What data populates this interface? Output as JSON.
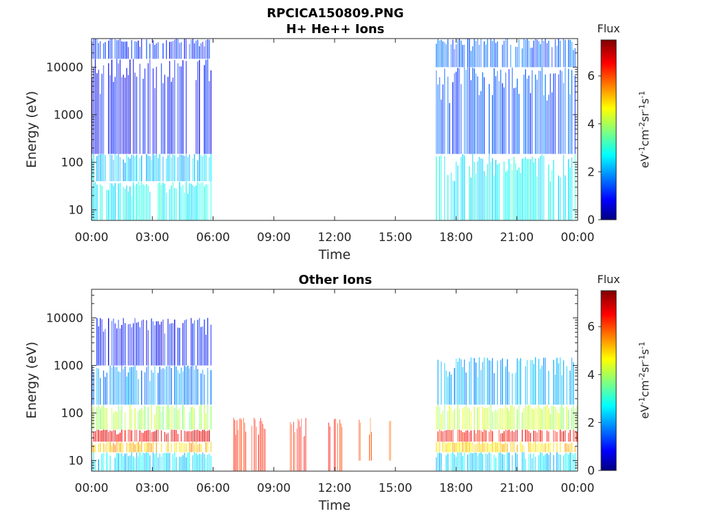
{
  "figure": {
    "title_line1": "RPCICA150809.PNG"
  },
  "colorbar": {
    "label": "Flux",
    "unit_label": "eV-1cm-2sr-1s-1",
    "range": [
      0,
      7.5
    ],
    "ticks": [
      "0",
      "2",
      "4",
      "6"
    ],
    "colormap": "jet"
  },
  "chart_data": [
    {
      "type": "heatmap",
      "title": "H+ He++ Ions",
      "xlabel": "Time",
      "ylabel": "Energy (eV)",
      "x_ticks": [
        "00:00",
        "03:00",
        "06:00",
        "09:00",
        "12:00",
        "15:00",
        "18:00",
        "21:00",
        "00:00"
      ],
      "x_range_hours": [
        0,
        24
      ],
      "y_ticks": [
        "10",
        "100",
        "1000",
        "10000"
      ],
      "y_scale": "log",
      "y_range": [
        6,
        40000
      ],
      "data_intervals_hours": [
        [
          0,
          5.9
        ],
        [
          17,
          23.9
        ]
      ],
      "regions": [
        {
          "t_start": 0.0,
          "t_end": 5.9,
          "e_min": 6,
          "e_max": 40,
          "flux": 2.8
        },
        {
          "t_start": 0.0,
          "t_end": 5.9,
          "e_min": 40,
          "e_max": 150,
          "flux": 2.4
        },
        {
          "t_start": 0.0,
          "t_end": 5.9,
          "e_min": 150,
          "e_max": 15000,
          "flux": 1.0
        },
        {
          "t_start": 0.0,
          "t_end": 5.9,
          "e_min": 15000,
          "e_max": 40000,
          "flux": 1.2
        },
        {
          "t_start": 17.0,
          "t_end": 23.9,
          "e_min": 6,
          "e_max": 150,
          "flux": 2.8
        },
        {
          "t_start": 17.0,
          "t_end": 23.9,
          "e_min": 150,
          "e_max": 10000,
          "flux": 1.5
        },
        {
          "t_start": 17.0,
          "t_end": 23.9,
          "e_min": 10000,
          "e_max": 40000,
          "flux": 1.6
        }
      ]
    },
    {
      "type": "heatmap",
      "title": "Other Ions",
      "xlabel": "Time",
      "ylabel": "Energy (eV)",
      "x_ticks": [
        "00:00",
        "03:00",
        "06:00",
        "09:00",
        "12:00",
        "15:00",
        "18:00",
        "21:00",
        "00:00"
      ],
      "x_range_hours": [
        0,
        24
      ],
      "y_ticks": [
        "10",
        "100",
        "1000",
        "10000"
      ],
      "y_scale": "log",
      "y_range": [
        6,
        40000
      ],
      "data_intervals_hours": [
        [
          0,
          5.9
        ],
        [
          7.0,
          14.9
        ],
        [
          17,
          24
        ]
      ],
      "regions": [
        {
          "t_start": 0.0,
          "t_end": 5.9,
          "e_min": 6,
          "e_max": 15,
          "flux": 2.5
        },
        {
          "t_start": 0.0,
          "t_end": 5.9,
          "e_min": 15,
          "e_max": 25,
          "flux": 5.2
        },
        {
          "t_start": 0.0,
          "t_end": 5.9,
          "e_min": 25,
          "e_max": 45,
          "flux": 6.8
        },
        {
          "t_start": 0.0,
          "t_end": 5.9,
          "e_min": 45,
          "e_max": 150,
          "flux": 4.0
        },
        {
          "t_start": 0.0,
          "t_end": 5.9,
          "e_min": 150,
          "e_max": 1000,
          "flux": 2.0
        },
        {
          "t_start": 0.0,
          "t_end": 5.9,
          "e_min": 1000,
          "e_max": 10000,
          "flux": 1.0
        },
        {
          "t_start": 7.0,
          "t_end": 7.6,
          "e_min": 6,
          "e_max": 80,
          "flux": 6.3
        },
        {
          "t_start": 7.9,
          "t_end": 8.6,
          "e_min": 6,
          "e_max": 80,
          "flux": 6.3
        },
        {
          "t_start": 9.8,
          "t_end": 10.6,
          "e_min": 6,
          "e_max": 80,
          "flux": 6.3
        },
        {
          "t_start": 11.7,
          "t_end": 12.4,
          "e_min": 6,
          "e_max": 80,
          "flux": 6.3
        },
        {
          "t_start": 13.2,
          "t_end": 13.3,
          "e_min": 10,
          "e_max": 80,
          "flux": 6.0
        },
        {
          "t_start": 13.7,
          "t_end": 13.9,
          "e_min": 10,
          "e_max": 80,
          "flux": 6.0
        },
        {
          "t_start": 14.7,
          "t_end": 14.8,
          "e_min": 10,
          "e_max": 80,
          "flux": 6.0
        },
        {
          "t_start": 17.0,
          "t_end": 24.0,
          "e_min": 6,
          "e_max": 15,
          "flux": 2.5
        },
        {
          "t_start": 17.0,
          "t_end": 24.0,
          "e_min": 15,
          "e_max": 25,
          "flux": 5.0
        },
        {
          "t_start": 17.0,
          "t_end": 24.0,
          "e_min": 25,
          "e_max": 45,
          "flux": 6.5
        },
        {
          "t_start": 17.0,
          "t_end": 24.0,
          "e_min": 45,
          "e_max": 150,
          "flux": 4.2
        },
        {
          "t_start": 17.0,
          "t_end": 24.0,
          "e_min": 150,
          "e_max": 1500,
          "flux": 2.2
        }
      ]
    }
  ]
}
